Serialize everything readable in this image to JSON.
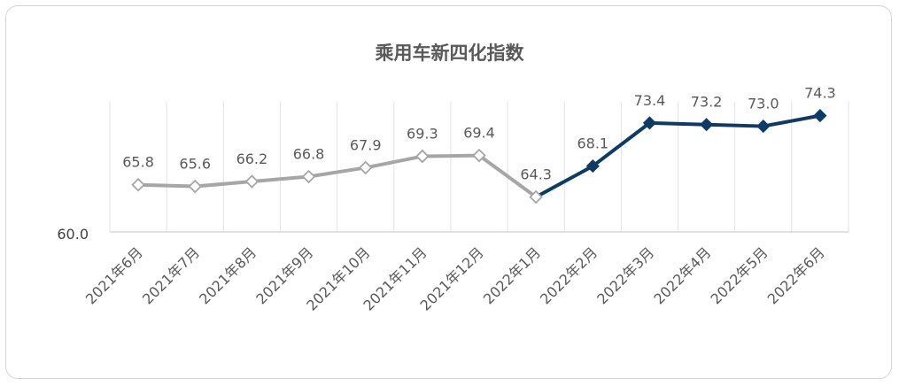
{
  "chart_data": {
    "type": "line",
    "title": "乘用车新四化指数",
    "categories": [
      "2021年6月",
      "2021年7月",
      "2021年8月",
      "2021年9月",
      "2021年10月",
      "2021年11月",
      "2021年12月",
      "2022年1月",
      "2022年2月",
      "2022年3月",
      "2022年4月",
      "2022年5月",
      "2022年6月"
    ],
    "values": [
      65.8,
      65.6,
      66.2,
      66.8,
      67.9,
      69.3,
      69.4,
      64.3,
      68.1,
      73.4,
      73.2,
      73.0,
      74.3
    ],
    "data_labels": [
      "65.8",
      "65.6",
      "66.2",
      "66.8",
      "67.9",
      "69.3",
      "69.4",
      "64.3",
      "68.1",
      "73.4",
      "73.2",
      "73.0",
      "74.3"
    ],
    "segments": [
      {
        "from": 0,
        "to": 7,
        "color": "#a6a6a6",
        "marker": "hollow-diamond"
      },
      {
        "from": 7,
        "to": 12,
        "color": "#0e3a66",
        "marker": "filled-diamond"
      }
    ],
    "ylim": [
      60,
      76
    ],
    "y_min_label": "60.0",
    "grid": "vertical",
    "legend": "none",
    "xlabel": "",
    "ylabel": ""
  }
}
